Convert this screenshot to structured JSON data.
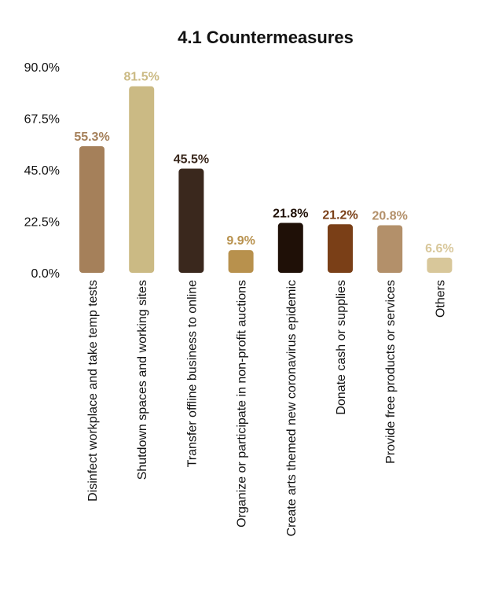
{
  "chart_data": {
    "type": "bar",
    "title": "4.1  Countermeasures",
    "xlabel": "",
    "ylabel": "",
    "ylim": [
      0,
      90
    ],
    "yticks": [
      "90.0%",
      "67.5%",
      "45.0%",
      "22.5%",
      "0.0%"
    ],
    "ytick_values": [
      90,
      67.5,
      45,
      22.5,
      0
    ],
    "grid": false,
    "categories": [
      "Disinfect workplace and take temp tests",
      "Shutdown spaces and working sites",
      "Transfer offline business to online",
      "Organize or participate in non-profit auctions",
      "Create arts themed new coronavirus epidemic",
      "Donate cash or supplies",
      "Provide free products or services",
      "Others"
    ],
    "values": [
      55.3,
      81.5,
      45.5,
      9.9,
      21.8,
      21.2,
      20.8,
      6.6
    ],
    "value_labels": [
      "55.3%",
      "81.5%",
      "45.5%",
      "9.9%",
      "21.8%",
      "21.2%",
      "20.8%",
      "6.6%"
    ],
    "colors": [
      "#A5805A",
      "#CBBA84",
      "#3A281D",
      "#B8914D",
      "#1F1007",
      "#7A3F17",
      "#B3906A",
      "#D8C79A"
    ]
  }
}
